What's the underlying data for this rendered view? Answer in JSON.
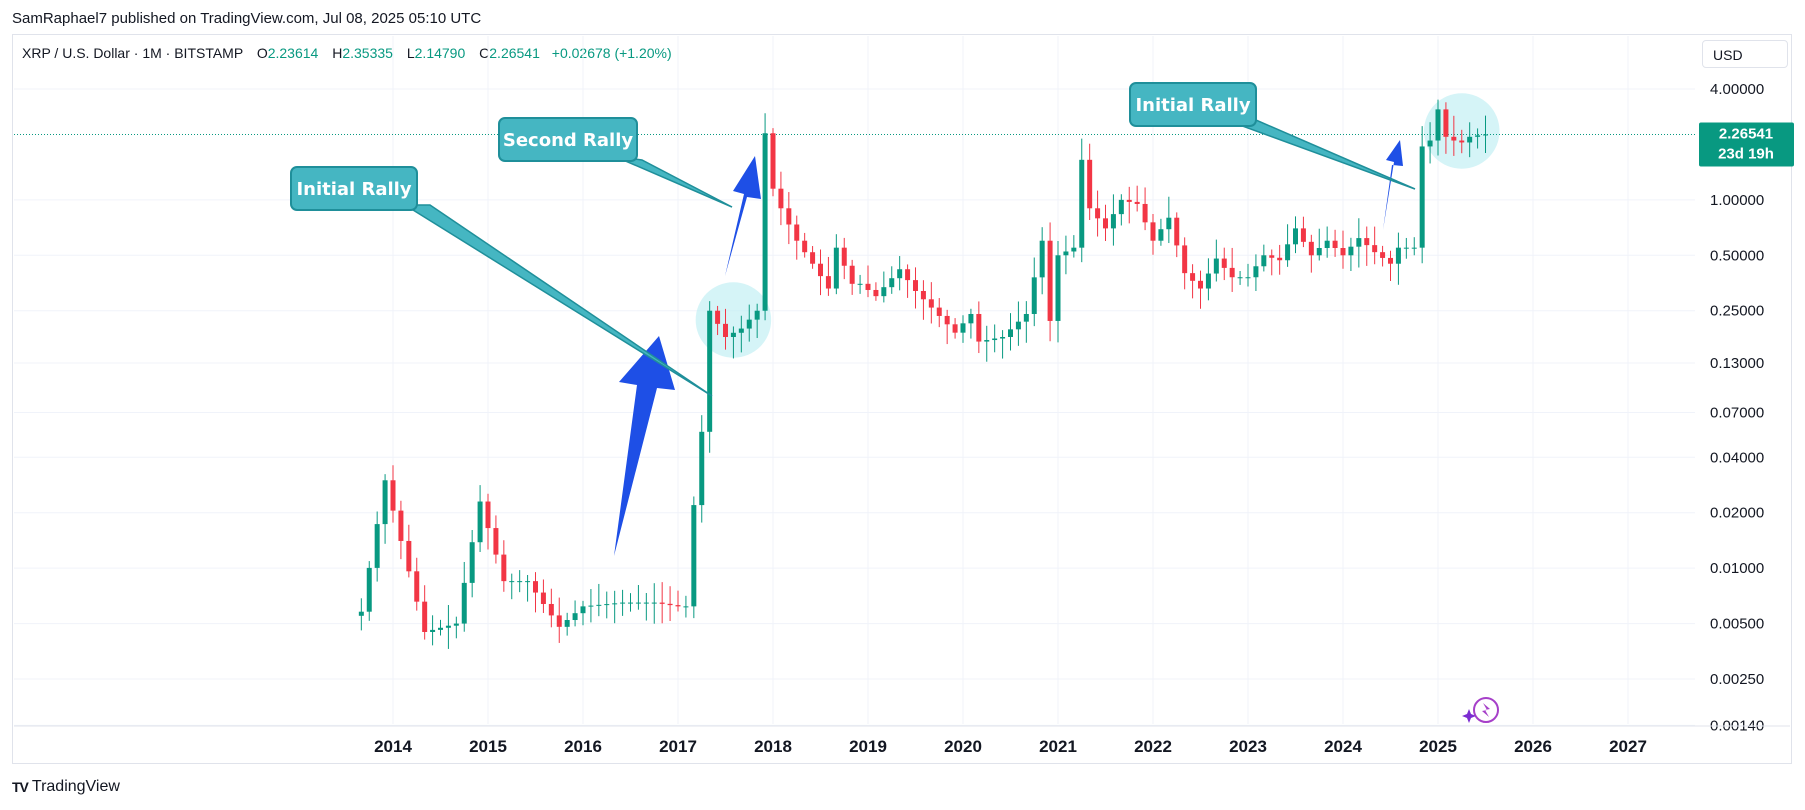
{
  "header": {
    "published": "SamRaphael7 published on TradingView.com, Jul 08, 2025 05:10 UTC"
  },
  "legend": {
    "symbol": "XRP / U.S. Dollar · 1M · BITSTAMP",
    "open_label": "O",
    "open": "2.23614",
    "high_label": "H",
    "high": "2.35335",
    "low_label": "L",
    "low": "2.14790",
    "close_label": "C",
    "close": "2.26541",
    "change": "+0.02678 (+1.20%)"
  },
  "currency_button": "USD",
  "brand": {
    "logo": "TV",
    "name": "TradingView"
  },
  "colors": {
    "up": "#089981",
    "down": "#f23645",
    "annotation": "#45b6c2",
    "arrow": "#1e4fe6",
    "highlight": "#bfeef2"
  },
  "icons": {
    "assistant": "sparkle-icon",
    "brand": "tradingview-logo-icon"
  },
  "chart_data": {
    "type": "candlestick",
    "scale": "log",
    "y_ticks": [
      4.0,
      1.0,
      0.5,
      0.25,
      0.13,
      0.07,
      0.04,
      0.02,
      0.01,
      0.005,
      0.0025,
      0.0014
    ],
    "y_tick_labels": [
      "4.00000",
      "1.00000",
      "0.50000",
      "0.25000",
      "0.13000",
      "0.07000",
      "0.04000",
      "0.02000",
      "0.01000",
      "0.00500",
      "0.00250",
      "0.00140"
    ],
    "x_ticks": [
      "2014",
      "2015",
      "2016",
      "2017",
      "2018",
      "2019",
      "2020",
      "2021",
      "2022",
      "2023",
      "2024",
      "2025",
      "2026",
      "2027"
    ],
    "last_price": 2.26541,
    "last_price_label": "2.26541",
    "countdown": "23d 19h",
    "annotations": [
      {
        "text": "Initial Rally",
        "date": "2017-05"
      },
      {
        "text": "Second Rally",
        "date": "2017-12"
      },
      {
        "text": "Initial Rally",
        "date": "2024-11"
      }
    ],
    "highlight_zones": [
      {
        "from": "2017-05",
        "to": "2017-11"
      },
      {
        "from": "2025-01",
        "to": "2025-07"
      }
    ],
    "anchors": [
      [
        "2013-09",
        0.0058
      ],
      [
        "2013-12",
        0.03
      ],
      [
        "2014-05",
        0.0045
      ],
      [
        "2014-09",
        0.005
      ],
      [
        "2014-12",
        0.023
      ],
      [
        "2015-03",
        0.0085
      ],
      [
        "2015-06",
        0.0085
      ],
      [
        "2015-10",
        0.0048
      ],
      [
        "2016-01",
        0.0062
      ],
      [
        "2016-06",
        0.0065
      ],
      [
        "2016-10",
        0.0065
      ],
      [
        "2017-01",
        0.0062
      ],
      [
        "2017-02",
        0.0062
      ],
      [
        "2017-03",
        0.022
      ],
      [
        "2017-04",
        0.055
      ],
      [
        "2017-05",
        0.25
      ],
      [
        "2017-07",
        0.18
      ],
      [
        "2017-09",
        0.2
      ],
      [
        "2017-11",
        0.25
      ],
      [
        "2017-12",
        2.3
      ],
      [
        "2018-01",
        1.15
      ],
      [
        "2018-02",
        0.9
      ],
      [
        "2018-04",
        0.6
      ],
      [
        "2018-06",
        0.45
      ],
      [
        "2018-08",
        0.33
      ],
      [
        "2018-09",
        0.55
      ],
      [
        "2018-11",
        0.35
      ],
      [
        "2018-12",
        0.35
      ],
      [
        "2019-02",
        0.3
      ],
      [
        "2019-05",
        0.42
      ],
      [
        "2019-07",
        0.32
      ],
      [
        "2019-09",
        0.26
      ],
      [
        "2019-12",
        0.19
      ],
      [
        "2020-02",
        0.24
      ],
      [
        "2020-03",
        0.17
      ],
      [
        "2020-06",
        0.18
      ],
      [
        "2020-09",
        0.24
      ],
      [
        "2020-11",
        0.6
      ],
      [
        "2020-12",
        0.22
      ],
      [
        "2021-01",
        0.5
      ],
      [
        "2021-03",
        0.55
      ],
      [
        "2021-04",
        1.65
      ],
      [
        "2021-05",
        0.9
      ],
      [
        "2021-07",
        0.7
      ],
      [
        "2021-09",
        1.0
      ],
      [
        "2021-11",
        0.95
      ],
      [
        "2022-01",
        0.6
      ],
      [
        "2022-03",
        0.8
      ],
      [
        "2022-05",
        0.4
      ],
      [
        "2022-07",
        0.33
      ],
      [
        "2022-09",
        0.48
      ],
      [
        "2022-11",
        0.38
      ],
      [
        "2023-01",
        0.38
      ],
      [
        "2023-03",
        0.5
      ],
      [
        "2023-05",
        0.47
      ],
      [
        "2023-07",
        0.7
      ],
      [
        "2023-09",
        0.5
      ],
      [
        "2023-11",
        0.6
      ],
      [
        "2024-01",
        0.5
      ],
      [
        "2024-03",
        0.62
      ],
      [
        "2024-05",
        0.52
      ],
      [
        "2024-07",
        0.45
      ],
      [
        "2024-08",
        0.55
      ],
      [
        "2024-10",
        0.55
      ],
      [
        "2024-11",
        1.95
      ],
      [
        "2024-12",
        2.1
      ],
      [
        "2025-01",
        3.1
      ],
      [
        "2025-02",
        2.2
      ],
      [
        "2025-03",
        2.1
      ],
      [
        "2025-04",
        2.05
      ],
      [
        "2025-05",
        2.2
      ],
      [
        "2025-06",
        2.24
      ],
      [
        "2025-07",
        2.26541
      ]
    ]
  }
}
